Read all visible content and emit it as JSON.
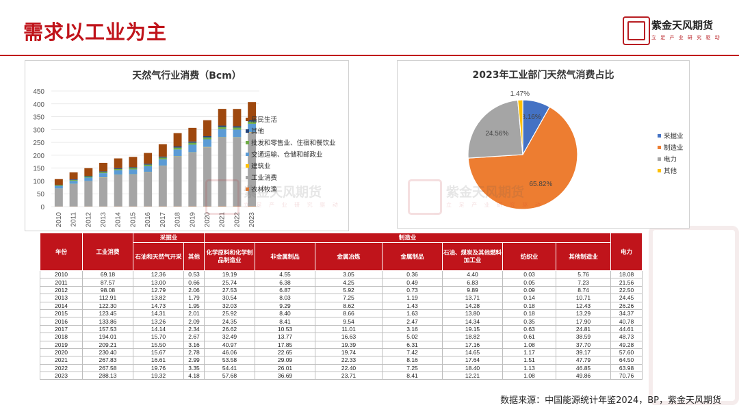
{
  "slide": {
    "title": "需求以工业为主",
    "brand_name": "紫金天风期货",
    "brand_slogan": "立 足 产 业   研 究 驱 动",
    "source": "数据来源：中国能源统计年鉴2024，BP，紫金天风期货"
  },
  "watermark": {
    "text": "紫金天风期货",
    "sub": "立 足 产 业   研 究 驱 动"
  },
  "colors": {
    "accent": "#c0141b"
  },
  "chart_data": [
    {
      "type": "bar",
      "stacked": true,
      "title": "天然气行业消费（Bcm）",
      "categories": [
        "2010",
        "2011",
        "2012",
        "2013",
        "2014",
        "2015",
        "2016",
        "2017",
        "2018",
        "2019",
        "2020",
        "2021",
        "2022",
        "2023"
      ],
      "ylim": [
        0,
        450
      ],
      "yticks": [
        0,
        50,
        100,
        150,
        200,
        250,
        300,
        350,
        400,
        450
      ],
      "legend_position": "right",
      "series": [
        {
          "name": "农林牧渔",
          "color": "#ed7d31",
          "values": [
            0.5,
            0.5,
            0.6,
            0.6,
            0.7,
            0.7,
            0.7,
            0.8,
            0.8,
            0.9,
            0.9,
            1.0,
            1.0,
            1.1
          ]
        },
        {
          "name": "工业消费",
          "color": "#a5a5a5",
          "values": [
            69.18,
            87.57,
            98.08,
            112.91,
            122.3,
            123.45,
            133.86,
            157.53,
            194.01,
            209.21,
            230.4,
            267.83,
            267.58,
            288.13
          ]
        },
        {
          "name": "建筑业",
          "color": "#ffc000",
          "values": [
            0.5,
            0.6,
            0.6,
            0.7,
            0.7,
            0.8,
            0.8,
            0.9,
            0.9,
            1.0,
            1.0,
            1.1,
            1.1,
            1.2
          ]
        },
        {
          "name": "交通运输、仓储和邮政业",
          "color": "#5b9bd5",
          "values": [
            10,
            12,
            14,
            16,
            18,
            20,
            22,
            25,
            27,
            30,
            30,
            32,
            30,
            32
          ]
        },
        {
          "name": "批发和零售业、住宿和餐饮业",
          "color": "#70ad47",
          "values": [
            3,
            3.5,
            4,
            4.5,
            5,
            5.5,
            6,
            6.5,
            7,
            7.5,
            7,
            8,
            8,
            8.5
          ]
        },
        {
          "name": "其他",
          "color": "#264478",
          "values": [
            2,
            2.2,
            2.5,
            2.8,
            3,
            3.2,
            3.5,
            4,
            4.5,
            5,
            5,
            5.5,
            5.5,
            6
          ]
        },
        {
          "name": "居民生活",
          "color": "#9e480e",
          "values": [
            22,
            27,
            30,
            33,
            38,
            40,
            42,
            48,
            52,
            53,
            62,
            65,
            67,
            70
          ]
        }
      ]
    },
    {
      "type": "pie",
      "title": "2023年工业部门天然气消费占比",
      "legend_position": "right",
      "slices": [
        {
          "name": "采掘业",
          "value": 8.16,
          "label": "8.16%",
          "color": "#4472c4"
        },
        {
          "name": "制造业",
          "value": 65.82,
          "label": "65.82%",
          "color": "#ed7d31"
        },
        {
          "name": "电力",
          "value": 24.56,
          "label": "24.56%",
          "color": "#a5a5a5"
        },
        {
          "name": "其他",
          "value": 1.47,
          "label": "1.47%",
          "color": "#ffc000"
        }
      ]
    },
    {
      "type": "table",
      "headers": {
        "year": "年份",
        "industry_total": "工业消费",
        "mining_group": "采掘业",
        "manufacturing_group": "制造业",
        "power": "电力",
        "mining": [
          "石油和天然气开采",
          "其他"
        ],
        "manufacturing": [
          "化学原料和化学制品制造业",
          "非金属制品",
          "金属冶炼",
          "金属制品",
          "石油、煤炭及其他燃料加工业",
          "纺织业",
          "其他制造业"
        ]
      },
      "rows": [
        [
          "2010",
          "69.18",
          "12.36",
          "0.53",
          "19.19",
          "4.55",
          "3.05",
          "0.36",
          "4.40",
          "0.03",
          "5.76",
          "18.08"
        ],
        [
          "2011",
          "87.57",
          "13.00",
          "0.66",
          "25.74",
          "6.38",
          "4.25",
          "0.49",
          "6.83",
          "0.05",
          "7.23",
          "21.56"
        ],
        [
          "2012",
          "98.08",
          "12.79",
          "2.06",
          "27.53",
          "6.87",
          "5.92",
          "0.73",
          "9.89",
          "0.09",
          "8.74",
          "22.50"
        ],
        [
          "2013",
          "112.91",
          "13.82",
          "1.79",
          "30.54",
          "8.03",
          "7.25",
          "1.19",
          "13.71",
          "0.14",
          "10.71",
          "24.45"
        ],
        [
          "2014",
          "122.30",
          "14.73",
          "1.95",
          "32.03",
          "9.29",
          "8.62",
          "1.43",
          "14.28",
          "0.18",
          "12.43",
          "26.26"
        ],
        [
          "2015",
          "123.45",
          "14.31",
          "2.01",
          "25.92",
          "8.40",
          "8.66",
          "1.63",
          "13.80",
          "0.18",
          "13.29",
          "34.37"
        ],
        [
          "2016",
          "133.86",
          "13.26",
          "2.09",
          "24.35",
          "8.41",
          "9.54",
          "2.47",
          "14.34",
          "0.35",
          "17.90",
          "40.78"
        ],
        [
          "2017",
          "157.53",
          "14.14",
          "2.34",
          "26.62",
          "10.53",
          "11.01",
          "3.16",
          "19.15",
          "0.63",
          "24.81",
          "44.61"
        ],
        [
          "2018",
          "194.01",
          "15.70",
          "2.67",
          "32.49",
          "13.77",
          "16.63",
          "5.02",
          "18.82",
          "0.61",
          "38.59",
          "48.73"
        ],
        [
          "2019",
          "209.21",
          "15.50",
          "3.16",
          "40.97",
          "17.85",
          "19.39",
          "6.31",
          "17.16",
          "1.08",
          "37.70",
          "49.28"
        ],
        [
          "2020",
          "230.40",
          "15.67",
          "2.78",
          "46.06",
          "22.65",
          "19.74",
          "7.42",
          "14.65",
          "1.17",
          "39.17",
          "57.60"
        ],
        [
          "2021",
          "267.83",
          "16.61",
          "2.99",
          "53.58",
          "29.09",
          "22.33",
          "8.16",
          "17.64",
          "1.51",
          "47.79",
          "64.50"
        ],
        [
          "2022",
          "267.58",
          "19.76",
          "3.35",
          "54.41",
          "26.01",
          "22.40",
          "7.25",
          "18.40",
          "1.13",
          "46.85",
          "63.98"
        ],
        [
          "2023",
          "288.13",
          "19.32",
          "4.18",
          "57.68",
          "36.69",
          "23.71",
          "8.41",
          "12.21",
          "1.08",
          "49.86",
          "70.76"
        ]
      ]
    }
  ]
}
